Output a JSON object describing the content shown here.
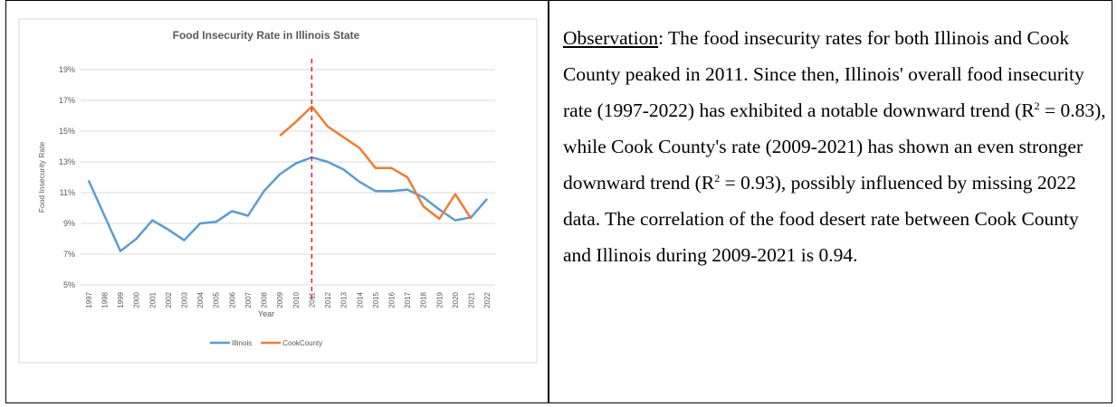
{
  "chart_data": {
    "type": "line",
    "title": "Food Insecurity Rate in Illinois State",
    "xlabel": "Year",
    "ylabel": "Food Insecurity Rate",
    "categories": [
      "1997",
      "1998",
      "1999",
      "2000",
      "2001",
      "2002",
      "2003",
      "2004",
      "2005",
      "2006",
      "2007",
      "2008",
      "2009",
      "2010",
      "2011",
      "2012",
      "2013",
      "2014",
      "2015",
      "2016",
      "2017",
      "2018",
      "2019",
      "2020",
      "2021",
      "2022"
    ],
    "series": [
      {
        "name": "Illinois",
        "color": "#5b9bd5",
        "values": [
          11.8,
          9.5,
          7.2,
          8.0,
          9.2,
          8.6,
          7.9,
          9.0,
          9.1,
          9.8,
          9.5,
          11.1,
          12.2,
          12.9,
          13.3,
          13.0,
          12.5,
          11.7,
          11.1,
          11.1,
          11.2,
          10.7,
          9.9,
          9.2,
          9.4,
          10.6
        ]
      },
      {
        "name": "CookCounty",
        "color": "#ed7d31",
        "values": [
          null,
          null,
          null,
          null,
          null,
          null,
          null,
          null,
          null,
          null,
          null,
          null,
          14.7,
          15.6,
          16.6,
          15.3,
          14.6,
          13.9,
          12.6,
          12.6,
          12.0,
          10.1,
          9.3,
          10.9,
          9.3,
          null
        ]
      }
    ],
    "ylim": [
      5,
      19
    ],
    "yticks": [
      {
        "value": 5,
        "label": "5%"
      },
      {
        "value": 7,
        "label": "7%"
      },
      {
        "value": 9,
        "label": "9%"
      },
      {
        "value": 11,
        "label": "11%"
      },
      {
        "value": 13,
        "label": "13%"
      },
      {
        "value": 15,
        "label": "15%"
      },
      {
        "value": 17,
        "label": "17%"
      },
      {
        "value": 19,
        "label": "19%"
      }
    ],
    "grid": true,
    "legend": "bottom",
    "vline": {
      "category": "2011",
      "color": "#e02020"
    }
  },
  "observation": {
    "label": "Observation",
    "parts": [
      ": The food insecurity rates for both Illinois and Cook County peaked in 2011. Since then, Illinois' overall food insecurity rate (1997-2022)  has exhibited a notable downward trend (R",
      "2",
      " = 0.83), while Cook County's rate (2009-2021)  has shown an even stronger downward trend (R",
      "2",
      " = 0.93), possibly influenced by missing 2022 data. The correlation of the food desert rate between Cook County and Illinois during 2009-2021 is 0.94."
    ]
  }
}
